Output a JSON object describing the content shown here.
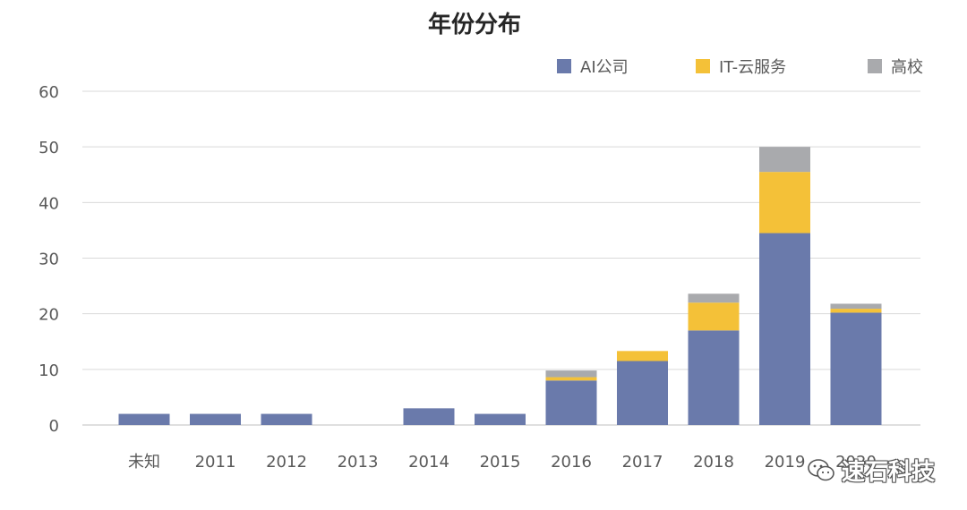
{
  "chart_data": {
    "type": "bar",
    "stacked": true,
    "title": "年份分布",
    "categories": [
      "未知",
      "2011",
      "2012",
      "2013",
      "2014",
      "2015",
      "2016",
      "2017",
      "2018",
      "2019",
      "2020"
    ],
    "series": [
      {
        "name": "AI公司",
        "color": "#6a7aab",
        "values": [
          2,
          2,
          2,
          0,
          3,
          2,
          8,
          11.5,
          17,
          34.5,
          20.2
        ]
      },
      {
        "name": "IT-云服务",
        "color": "#f4c138",
        "values": [
          0,
          0,
          0,
          0,
          0,
          0,
          0.6,
          1.8,
          5,
          11,
          0.7
        ]
      },
      {
        "name": "高校",
        "color": "#a9aaad",
        "values": [
          0,
          0,
          0,
          0,
          0,
          0,
          1.2,
          0,
          1.6,
          4.5,
          0.9
        ]
      }
    ],
    "ylim": [
      0,
      60
    ],
    "yticks": [
      0,
      10,
      20,
      30,
      40,
      50,
      60
    ],
    "grid": true,
    "legend": "top-right"
  },
  "watermark": {
    "text": "速石科技",
    "icon": "wechat-icon"
  }
}
